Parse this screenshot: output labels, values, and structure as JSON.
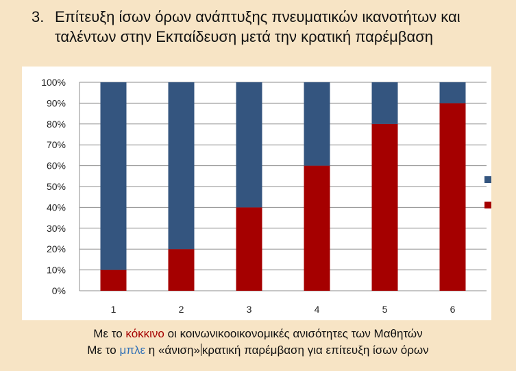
{
  "title": {
    "number": "3.",
    "text": "Επίτευξη ίσων όρων ανάπτυξης πνευματικών ικανοτήτων και ταλέντων στην Εκπαίδευση μετά την κρατική παρέμβαση"
  },
  "colors": {
    "background": "#f7e4c5",
    "red_series": "#a50000",
    "blue_series": "#34557f",
    "blue_word": "#2f6fb5"
  },
  "chart_data": {
    "type": "bar",
    "stacked": true,
    "categories": [
      "1",
      "2",
      "3",
      "4",
      "5",
      "6"
    ],
    "series": [
      {
        "color": "#a50000",
        "values": [
          10,
          20,
          40,
          60,
          80,
          90
        ]
      },
      {
        "color": "#34557f",
        "values": [
          90,
          80,
          60,
          40,
          20,
          10
        ]
      }
    ],
    "ylim": [
      0,
      100
    ],
    "yticks": [
      "0%",
      "10%",
      "20%",
      "30%",
      "40%",
      "50%",
      "60%",
      "70%",
      "80%",
      "90%",
      "100%"
    ],
    "grid": true,
    "legend": "right"
  },
  "caption": {
    "line1_prefix": "Με το",
    "line1_keyword": "κόκκινο",
    "line1_suffix": "οι κοινωνικοοικονομικές ανισότητες των Μαθητών",
    "line2_prefix": "Με το",
    "line2_keyword": "μπλε",
    "line2_mid": "η «άνιση»",
    "line2_suffix": "κρατική παρέμβαση για επίτευξη ίσων όρων"
  }
}
